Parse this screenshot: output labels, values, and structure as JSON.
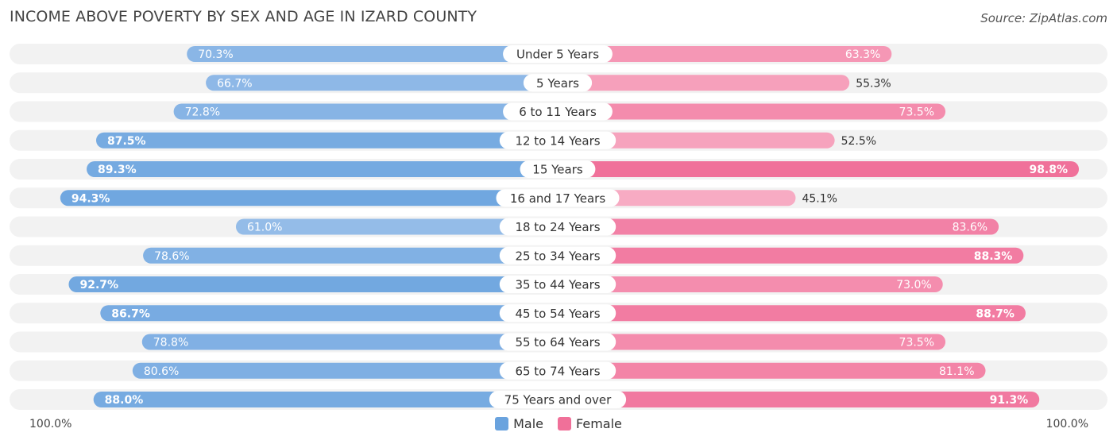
{
  "title": "INCOME ABOVE POVERTY BY SEX AND AGE IN IZARD COUNTY",
  "source": "Source: ZipAtlas.com",
  "axis_left_label": "100.0%",
  "axis_right_label": "100.0%",
  "legend": {
    "male": "Male",
    "female": "Female"
  },
  "colors": {
    "male_strong": "#6aa3de",
    "male_light": "#aac9ee",
    "female_strong": "#f07099",
    "female_light": "#f8b0c7",
    "row_bg": "#f2f2f2"
  },
  "chart_data": {
    "type": "bar",
    "orientation": "horizontal-diverging",
    "title": "INCOME ABOVE POVERTY BY SEX AND AGE IN IZARD COUNTY",
    "categories": [
      "Under 5 Years",
      "5 Years",
      "6 to 11 Years",
      "12 to 14 Years",
      "15 Years",
      "16 and 17 Years",
      "18 to 24 Years",
      "25 to 34 Years",
      "35 to 44 Years",
      "45 to 54 Years",
      "55 to 64 Years",
      "65 to 74 Years",
      "75 Years and over"
    ],
    "series": [
      {
        "name": "Male",
        "values": [
          70.3,
          66.7,
          72.8,
          87.5,
          89.3,
          94.3,
          61.0,
          78.6,
          92.7,
          86.7,
          78.8,
          80.6,
          88.0
        ]
      },
      {
        "name": "Female",
        "values": [
          63.3,
          55.3,
          73.5,
          52.5,
          98.8,
          45.1,
          83.6,
          88.3,
          73.0,
          88.7,
          73.5,
          81.1,
          91.3
        ]
      }
    ],
    "xlim": [
      0,
      100
    ],
    "legend_position": "bottom-center",
    "grid": false
  }
}
